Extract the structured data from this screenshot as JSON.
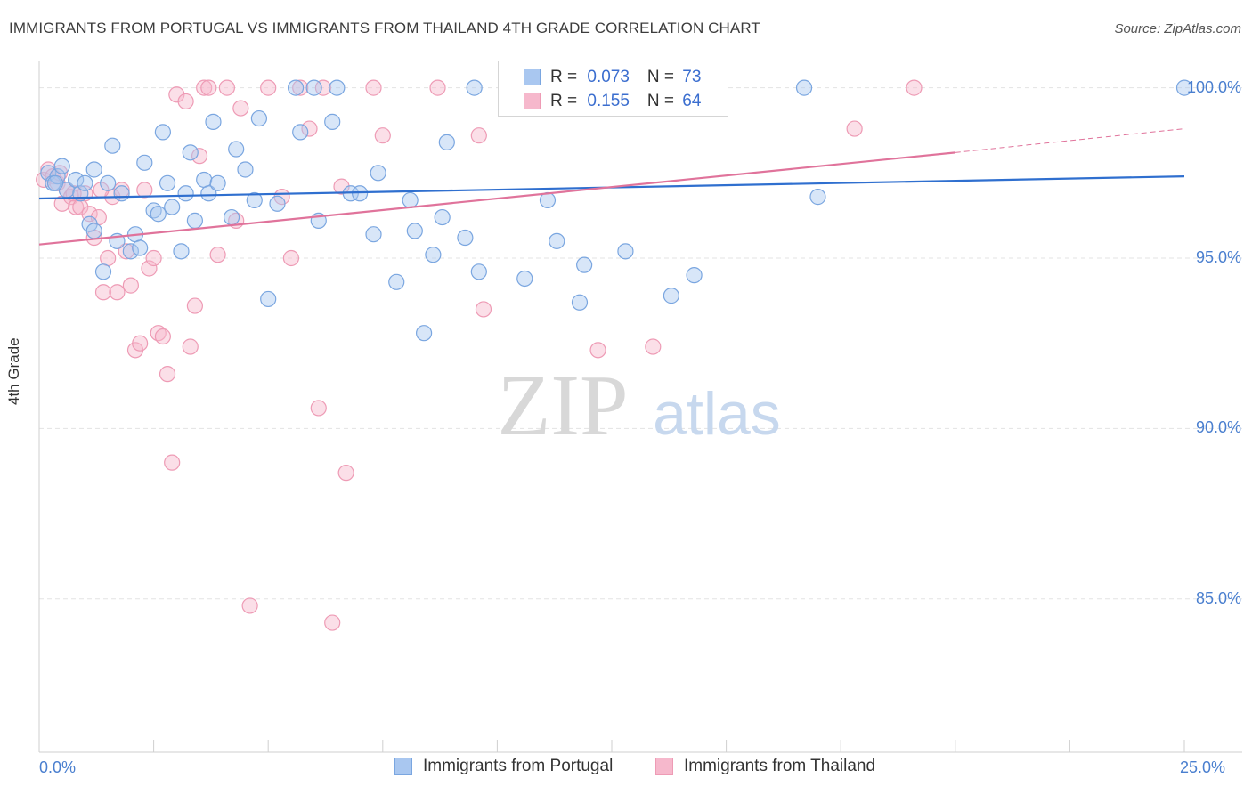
{
  "title": "IMMIGRANTS FROM PORTUGAL VS IMMIGRANTS FROM THAILAND 4TH GRADE CORRELATION CHART",
  "source": "Source: ZipAtlas.com",
  "watermark": {
    "zip": "ZIP",
    "atlas": "atlas"
  },
  "colors": {
    "portugal_fill": "#a9c7f0",
    "portugal_stroke": "#7aa6e0",
    "portugal_line": "#2f6fcf",
    "thailand_fill": "#f6b8cc",
    "thailand_stroke": "#ee9bb5",
    "thailand_line": "#e0739b",
    "tick_text": "#4a7fcf",
    "grid": "#e3e3e3"
  },
  "legend": {
    "rows": [
      {
        "r_label": "R = ",
        "r_value": "0.073",
        "n_label": "N = ",
        "n_value": "73"
      },
      {
        "r_label": "R = ",
        "r_value": "0.155",
        "n_label": "N = ",
        "n_value": "64"
      }
    ]
  },
  "bottom_legend": {
    "portugal": "Immigrants from Portugal",
    "thailand": "Immigrants from Thailand"
  },
  "chart_data": {
    "type": "scatter",
    "title": "IMMIGRANTS FROM PORTUGAL VS IMMIGRANTS FROM THAILAND 4TH GRADE CORRELATION CHART",
    "xlabel": "",
    "ylabel": "4th Grade",
    "xlim": [
      0,
      25
    ],
    "ylim": [
      80.5,
      100.8
    ],
    "x_tick_labels": [
      "0.0%",
      "25.0%"
    ],
    "y_ticks": [
      85,
      90,
      95,
      100
    ],
    "y_tick_labels": [
      "85.0%",
      "90.0%",
      "95.0%",
      "100.0%"
    ],
    "grid": true,
    "legend_position": "top-center",
    "series": [
      {
        "name": "Immigrants from Portugal",
        "R": 0.073,
        "N": 73,
        "trend": {
          "x": [
            0,
            25
          ],
          "y": [
            96.75,
            97.4
          ]
        },
        "points": [
          [
            0.2,
            97.5
          ],
          [
            0.3,
            97.2
          ],
          [
            0.4,
            97.4
          ],
          [
            0.5,
            97.7
          ],
          [
            0.6,
            97.0
          ],
          [
            0.8,
            97.3
          ],
          [
            0.9,
            96.9
          ],
          [
            1.0,
            97.2
          ],
          [
            1.1,
            96.0
          ],
          [
            1.2,
            95.8
          ],
          [
            1.2,
            97.6
          ],
          [
            1.4,
            94.6
          ],
          [
            1.5,
            97.2
          ],
          [
            1.6,
            98.3
          ],
          [
            1.7,
            95.5
          ],
          [
            1.8,
            96.9
          ],
          [
            2.0,
            95.2
          ],
          [
            2.1,
            95.7
          ],
          [
            2.2,
            95.3
          ],
          [
            2.3,
            97.8
          ],
          [
            2.5,
            96.4
          ],
          [
            2.6,
            96.3
          ],
          [
            2.7,
            98.7
          ],
          [
            2.8,
            97.2
          ],
          [
            2.9,
            96.5
          ],
          [
            3.1,
            95.2
          ],
          [
            3.2,
            96.9
          ],
          [
            3.3,
            98.1
          ],
          [
            3.4,
            96.1
          ],
          [
            3.6,
            97.3
          ],
          [
            3.7,
            96.9
          ],
          [
            3.9,
            97.2
          ],
          [
            3.8,
            99.0
          ],
          [
            4.2,
            96.2
          ],
          [
            4.3,
            98.2
          ],
          [
            4.5,
            97.6
          ],
          [
            4.7,
            96.7
          ],
          [
            4.8,
            99.1
          ],
          [
            5.0,
            93.8
          ],
          [
            5.2,
            96.6
          ],
          [
            5.6,
            100.0
          ],
          [
            5.7,
            98.7
          ],
          [
            6.0,
            100.0
          ],
          [
            6.1,
            96.1
          ],
          [
            6.4,
            99.0
          ],
          [
            6.5,
            100.0
          ],
          [
            6.8,
            96.9
          ],
          [
            7.0,
            96.9
          ],
          [
            7.3,
            95.7
          ],
          [
            7.4,
            97.5
          ],
          [
            7.8,
            94.3
          ],
          [
            8.1,
            96.7
          ],
          [
            8.2,
            95.8
          ],
          [
            8.4,
            92.8
          ],
          [
            8.6,
            95.1
          ],
          [
            8.8,
            96.2
          ],
          [
            8.9,
            98.4
          ],
          [
            9.3,
            95.6
          ],
          [
            9.5,
            100.0
          ],
          [
            9.6,
            94.6
          ],
          [
            10.6,
            94.4
          ],
          [
            11.1,
            96.7
          ],
          [
            11.3,
            95.5
          ],
          [
            11.8,
            93.7
          ],
          [
            11.9,
            94.8
          ],
          [
            12.8,
            95.2
          ],
          [
            13.8,
            93.9
          ],
          [
            14.3,
            94.5
          ],
          [
            14.8,
            100.0
          ],
          [
            16.7,
            100.0
          ],
          [
            17.0,
            96.8
          ],
          [
            25.0,
            100.0
          ],
          [
            0.35,
            97.2
          ]
        ]
      },
      {
        "name": "Immigrants from Thailand",
        "R": 0.155,
        "N": 64,
        "trend": {
          "x": [
            0,
            20
          ],
          "y": [
            95.4,
            98.1
          ]
        },
        "trend_dashed": {
          "x": [
            20,
            25
          ],
          "y": [
            98.1,
            98.8
          ]
        },
        "points": [
          [
            0.1,
            97.3
          ],
          [
            0.2,
            97.6
          ],
          [
            0.3,
            97.4
          ],
          [
            0.4,
            97.2
          ],
          [
            0.5,
            96.6
          ],
          [
            0.6,
            97.0
          ],
          [
            0.7,
            96.8
          ],
          [
            0.8,
            96.5
          ],
          [
            0.9,
            96.5
          ],
          [
            1.0,
            96.9
          ],
          [
            1.1,
            96.3
          ],
          [
            1.2,
            95.6
          ],
          [
            1.3,
            96.2
          ],
          [
            1.4,
            94.0
          ],
          [
            1.5,
            95.0
          ],
          [
            1.6,
            96.8
          ],
          [
            1.7,
            94.0
          ],
          [
            1.8,
            97.0
          ],
          [
            1.9,
            95.2
          ],
          [
            2.0,
            94.2
          ],
          [
            2.1,
            92.3
          ],
          [
            2.2,
            92.5
          ],
          [
            2.3,
            97.0
          ],
          [
            2.4,
            94.7
          ],
          [
            2.5,
            95.0
          ],
          [
            2.6,
            92.8
          ],
          [
            2.7,
            92.7
          ],
          [
            2.8,
            91.6
          ],
          [
            2.9,
            89.0
          ],
          [
            3.0,
            99.8
          ],
          [
            3.2,
            99.6
          ],
          [
            3.3,
            92.4
          ],
          [
            3.4,
            93.6
          ],
          [
            3.5,
            98.0
          ],
          [
            3.6,
            100.0
          ],
          [
            3.7,
            100.0
          ],
          [
            3.9,
            95.1
          ],
          [
            4.1,
            100.0
          ],
          [
            4.3,
            96.1
          ],
          [
            4.4,
            99.4
          ],
          [
            4.6,
            84.8
          ],
          [
            5.0,
            100.0
          ],
          [
            5.3,
            96.8
          ],
          [
            5.5,
            95.0
          ],
          [
            5.7,
            100.0
          ],
          [
            5.9,
            98.8
          ],
          [
            6.1,
            90.6
          ],
          [
            6.2,
            100.0
          ],
          [
            6.4,
            84.3
          ],
          [
            6.6,
            97.1
          ],
          [
            6.7,
            88.7
          ],
          [
            7.3,
            100.0
          ],
          [
            7.5,
            98.6
          ],
          [
            8.7,
            100.0
          ],
          [
            9.6,
            98.6
          ],
          [
            9.7,
            93.5
          ],
          [
            12.2,
            92.3
          ],
          [
            13.1,
            100.0
          ],
          [
            13.4,
            92.4
          ],
          [
            17.8,
            98.8
          ],
          [
            19.1,
            100.0
          ],
          [
            1.35,
            97.0
          ],
          [
            0.45,
            97.5
          ],
          [
            0.75,
            96.9
          ]
        ]
      }
    ]
  }
}
